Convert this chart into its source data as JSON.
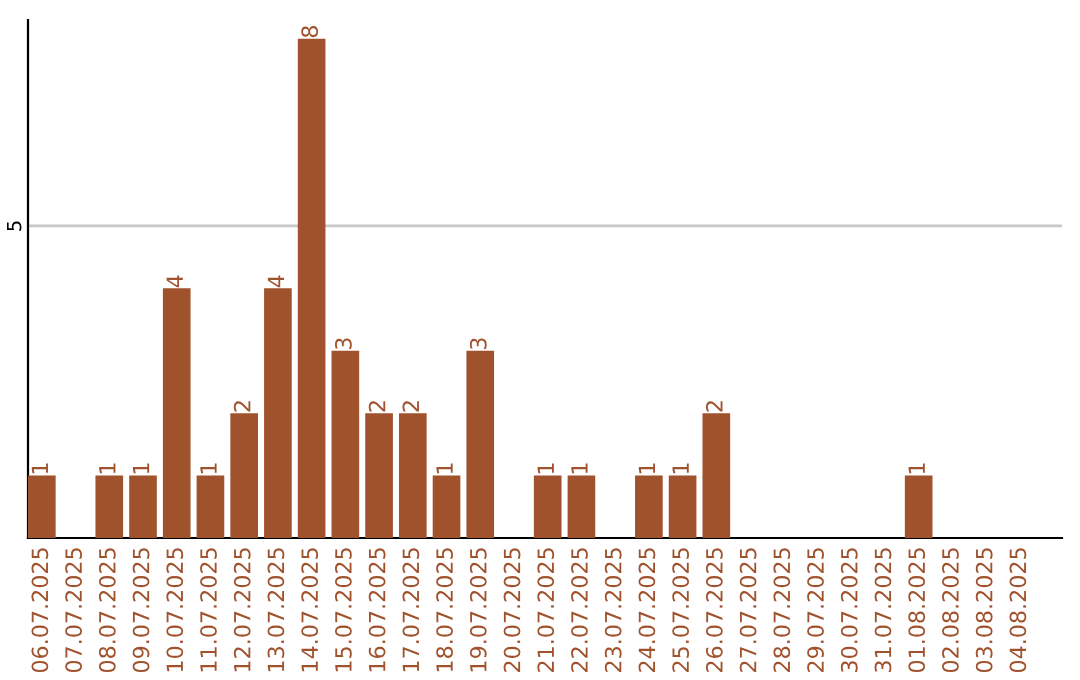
{
  "chart_data": {
    "type": "bar",
    "categories": [
      "06.07.2025",
      "07.07.2025",
      "08.07.2025",
      "09.07.2025",
      "10.07.2025",
      "11.07.2025",
      "12.07.2025",
      "13.07.2025",
      "14.07.2025",
      "15.07.2025",
      "16.07.2025",
      "17.07.2025",
      "18.07.2025",
      "19.07.2025",
      "20.07.2025",
      "21.07.2025",
      "22.07.2025",
      "23.07.2025",
      "24.07.2025",
      "25.07.2025",
      "26.07.2025",
      "27.07.2025",
      "28.07.2025",
      "29.07.2025",
      "30.07.2025",
      "31.07.2025",
      "01.08.2025",
      "02.08.2025",
      "03.08.2025",
      "04.08.2025"
    ],
    "values": [
      1,
      0,
      1,
      1,
      4,
      1,
      2,
      4,
      8,
      3,
      2,
      2,
      1,
      3,
      0,
      1,
      1,
      0,
      1,
      1,
      2,
      0,
      0,
      0,
      0,
      0,
      1,
      0,
      0,
      0
    ],
    "value_labels": [
      "1",
      null,
      "1",
      "1",
      "4",
      "1",
      "2",
      "4",
      "8",
      "3",
      "2",
      "2",
      "1",
      "3",
      null,
      "1",
      "1",
      null,
      "1",
      "1",
      "2",
      null,
      null,
      null,
      null,
      null,
      "1",
      null,
      null,
      null
    ],
    "color": "#a0522d",
    "ylim": [
      0,
      8.3
    ],
    "yticks": [
      5
    ],
    "grid": "y"
  }
}
